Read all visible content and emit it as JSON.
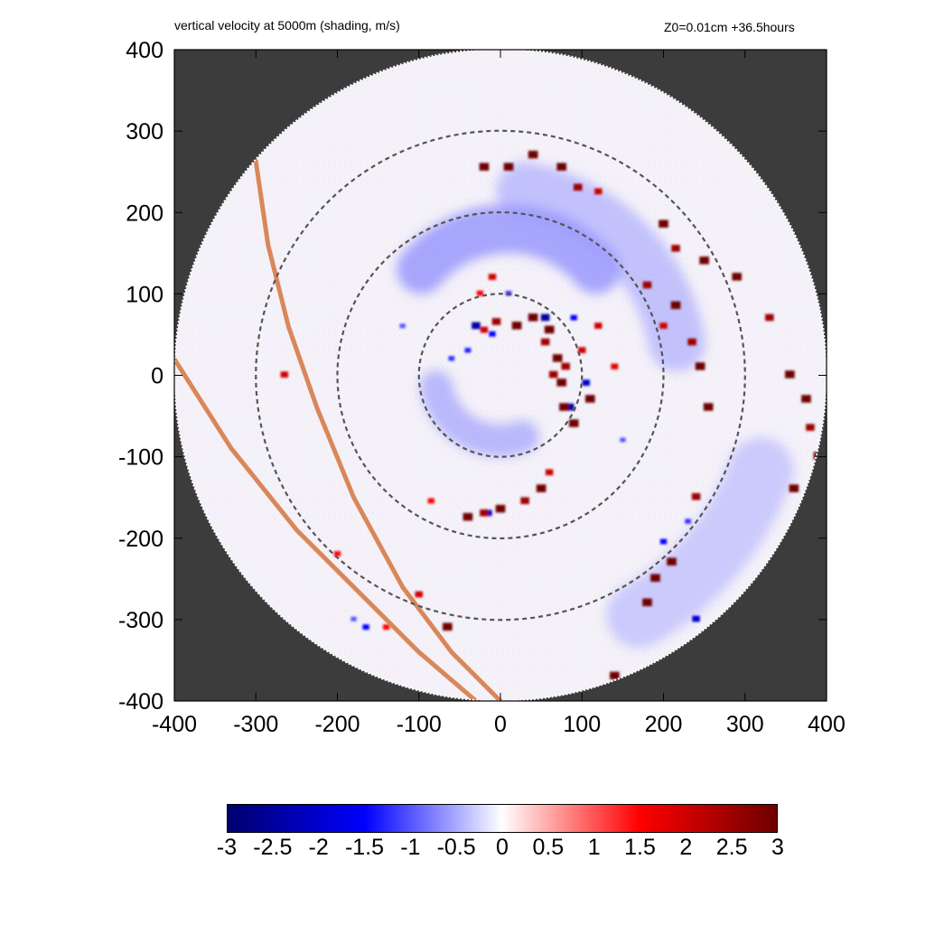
{
  "titles": {
    "left": "vertical velocity at 5000m (shading, m/s)",
    "right": "Z0=0.01cm  +36.5hours"
  },
  "chart_data": {
    "type": "heatmap",
    "title": "vertical velocity at 5000m (shading, m/s)",
    "annotation": "Z0=0.01cm  +36.5hours",
    "xlim": [
      -400,
      400
    ],
    "ylim": [
      -400,
      400
    ],
    "x_ticks": [
      -400,
      -300,
      -200,
      -100,
      0,
      100,
      200,
      300,
      400
    ],
    "y_ticks": [
      -400,
      -300,
      -200,
      -100,
      0,
      100,
      200,
      300,
      400
    ],
    "x_tick_labels": [
      "-400",
      "-300",
      "-200",
      "-100",
      "0",
      "100",
      "200",
      "300",
      "400"
    ],
    "y_tick_labels": [
      "400",
      "300",
      "200",
      "100",
      "0",
      "-100",
      "-200",
      "-300",
      "-400"
    ],
    "domain_radius": 400,
    "background_color": "#3c3c3c",
    "range_rings": [
      100,
      200,
      300
    ],
    "colorbar": {
      "min": -3,
      "max": 3,
      "ticks": [
        -3,
        -2.5,
        -2,
        -1.5,
        -1,
        -0.5,
        0,
        0.5,
        1,
        1.5,
        2,
        2.5,
        3
      ],
      "tick_labels": [
        "-3",
        "-2.5",
        "-2",
        "-1.5",
        "-1",
        "-0.5",
        "0",
        "0.5",
        "1",
        "1.5",
        "2",
        "2.5",
        "3"
      ],
      "colors": [
        "#00006e",
        "#0000ff",
        "#ffffff",
        "#ff0000",
        "#6e0000"
      ]
    },
    "coastlines": [
      {
        "color": "#d9875a",
        "points": [
          [
            -300,
            263
          ],
          [
            -285,
            160
          ],
          [
            -260,
            60
          ],
          [
            -225,
            -40
          ],
          [
            -180,
            -150
          ],
          [
            -120,
            -260
          ],
          [
            -60,
            -340
          ],
          [
            0,
            -400
          ]
        ]
      },
      {
        "color": "#d9875a",
        "points": [
          [
            -400,
            20
          ],
          [
            -330,
            -90
          ],
          [
            -250,
            -190
          ],
          [
            -170,
            -270
          ],
          [
            -100,
            -340
          ],
          [
            -30,
            -400
          ]
        ]
      }
    ],
    "updraft_cells": [
      [
        20,
        60,
        3
      ],
      [
        40,
        70,
        3
      ],
      [
        60,
        55,
        3
      ],
      [
        70,
        20,
        3
      ],
      [
        75,
        -10,
        3
      ],
      [
        78,
        -40,
        3
      ],
      [
        90,
        -60,
        3
      ],
      [
        110,
        -30,
        3
      ],
      [
        65,
        0,
        2.5
      ],
      [
        80,
        10,
        2.5
      ],
      [
        55,
        40,
        2.5
      ],
      [
        100,
        30,
        2
      ],
      [
        120,
        60,
        2
      ],
      [
        140,
        10,
        1.8
      ],
      [
        -5,
        65,
        2.5
      ],
      [
        -20,
        55,
        2
      ],
      [
        -10,
        120,
        2
      ],
      [
        -25,
        100,
        1.5
      ],
      [
        50,
        -140,
        3
      ],
      [
        30,
        -155,
        2.5
      ],
      [
        0,
        -165,
        3
      ],
      [
        -40,
        -175,
        3
      ],
      [
        -20,
        -170,
        2.5
      ],
      [
        60,
        -120,
        2
      ],
      [
        -85,
        -155,
        1.5
      ],
      [
        -20,
        255,
        3
      ],
      [
        10,
        255,
        3
      ],
      [
        40,
        270,
        3
      ],
      [
        75,
        255,
        3
      ],
      [
        95,
        230,
        2.5
      ],
      [
        120,
        225,
        2
      ],
      [
        200,
        185,
        3
      ],
      [
        215,
        155,
        2.5
      ],
      [
        250,
        140,
        3
      ],
      [
        290,
        120,
        3
      ],
      [
        180,
        110,
        2.5
      ],
      [
        215,
        85,
        3
      ],
      [
        200,
        60,
        2
      ],
      [
        235,
        40,
        2.5
      ],
      [
        245,
        10,
        3
      ],
      [
        255,
        -40,
        3
      ],
      [
        330,
        70,
        2.5
      ],
      [
        355,
        0,
        3
      ],
      [
        375,
        -30,
        3
      ],
      [
        380,
        -65,
        2.5
      ],
      [
        390,
        -100,
        3
      ],
      [
        360,
        -140,
        3
      ],
      [
        240,
        -150,
        2.5
      ],
      [
        210,
        -230,
        3
      ],
      [
        190,
        -250,
        3
      ],
      [
        180,
        -280,
        3
      ],
      [
        140,
        -370,
        3
      ],
      [
        -65,
        -310,
        3
      ],
      [
        -100,
        -270,
        2
      ],
      [
        -265,
        0,
        2
      ],
      [
        -200,
        -220,
        1.5
      ],
      [
        -140,
        -310,
        1.5
      ]
    ],
    "downdraft_cells": [
      [
        -30,
        60,
        -2.5
      ],
      [
        -10,
        50,
        -1.5
      ],
      [
        55,
        70,
        -2.5
      ],
      [
        85,
        -40,
        -2.5
      ],
      [
        105,
        -10,
        -2.0
      ],
      [
        -15,
        -170,
        -2
      ],
      [
        200,
        -205,
        -1.5
      ],
      [
        230,
        -180,
        -1.2
      ],
      [
        240,
        -300,
        -2
      ],
      [
        -165,
        -310,
        -1.5
      ],
      [
        -180,
        -300,
        -1
      ],
      [
        -40,
        30,
        -1.3
      ],
      [
        10,
        100,
        -1.2
      ],
      [
        90,
        70,
        -1.5
      ],
      [
        -60,
        20,
        -1.2
      ],
      [
        150,
        -80,
        -1
      ],
      [
        -120,
        60,
        -1
      ]
    ],
    "blue_bands": [
      {
        "cx": 10,
        "cy": 40,
        "r": 140,
        "start": 40,
        "end": 140,
        "width": 60,
        "value": -0.9
      },
      {
        "cx": -10,
        "cy": 0,
        "r": 230,
        "start": 10,
        "end": 80,
        "width": 70,
        "value": -0.6
      },
      {
        "cx": 0,
        "cy": 0,
        "r": 340,
        "start": -60,
        "end": -20,
        "width": 80,
        "value": -0.5
      },
      {
        "cx": 0,
        "cy": 0,
        "r": 80,
        "start": 190,
        "end": 290,
        "width": 40,
        "value": -0.7
      }
    ]
  }
}
